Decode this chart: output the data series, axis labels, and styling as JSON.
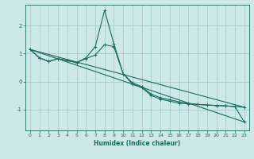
{
  "xlabel": "Humidex (Indice chaleur)",
  "bg_color": "#cce8e8",
  "grid_color": "#aad0d0",
  "line_color": "#1a6b60",
  "xlim": [
    -0.5,
    23.5
  ],
  "ylim": [
    -1.75,
    2.75
  ],
  "yticks": [
    -1,
    0,
    1,
    2
  ],
  "xticks": [
    0,
    1,
    2,
    3,
    4,
    5,
    6,
    7,
    8,
    9,
    10,
    11,
    12,
    13,
    14,
    15,
    16,
    17,
    18,
    19,
    20,
    21,
    22,
    23
  ],
  "series": [
    {
      "x": [
        0,
        1,
        2,
        3,
        4,
        5,
        6,
        7,
        8,
        9,
        10,
        11,
        12,
        13,
        14,
        15,
        16,
        17,
        18,
        19,
        20,
        21,
        22,
        23
      ],
      "y": [
        1.15,
        0.85,
        0.72,
        0.82,
        0.75,
        0.68,
        0.85,
        1.25,
        2.55,
        1.35,
        0.28,
        -0.05,
        -0.18,
        -0.45,
        -0.58,
        -0.65,
        -0.73,
        -0.78,
        -0.82,
        -0.84,
        -0.86,
        -0.87,
        -0.9,
        -1.45
      ],
      "markers": true
    },
    {
      "x": [
        0,
        1,
        2,
        3,
        4,
        5,
        6,
        7,
        8,
        9,
        10,
        11,
        12,
        13,
        14,
        15,
        16,
        17,
        18,
        19,
        20,
        21,
        22,
        23
      ],
      "y": [
        1.15,
        0.85,
        0.72,
        0.82,
        0.75,
        0.68,
        0.82,
        0.95,
        1.32,
        1.25,
        0.28,
        -0.1,
        -0.22,
        -0.5,
        -0.63,
        -0.7,
        -0.78,
        -0.8,
        -0.82,
        -0.84,
        -0.86,
        -0.87,
        -0.9,
        -0.92
      ],
      "markers": true
    },
    {
      "x": [
        0,
        23
      ],
      "y": [
        1.15,
        -0.92
      ],
      "markers": false
    },
    {
      "x": [
        0,
        23
      ],
      "y": [
        1.15,
        -1.45
      ],
      "markers": false
    }
  ]
}
